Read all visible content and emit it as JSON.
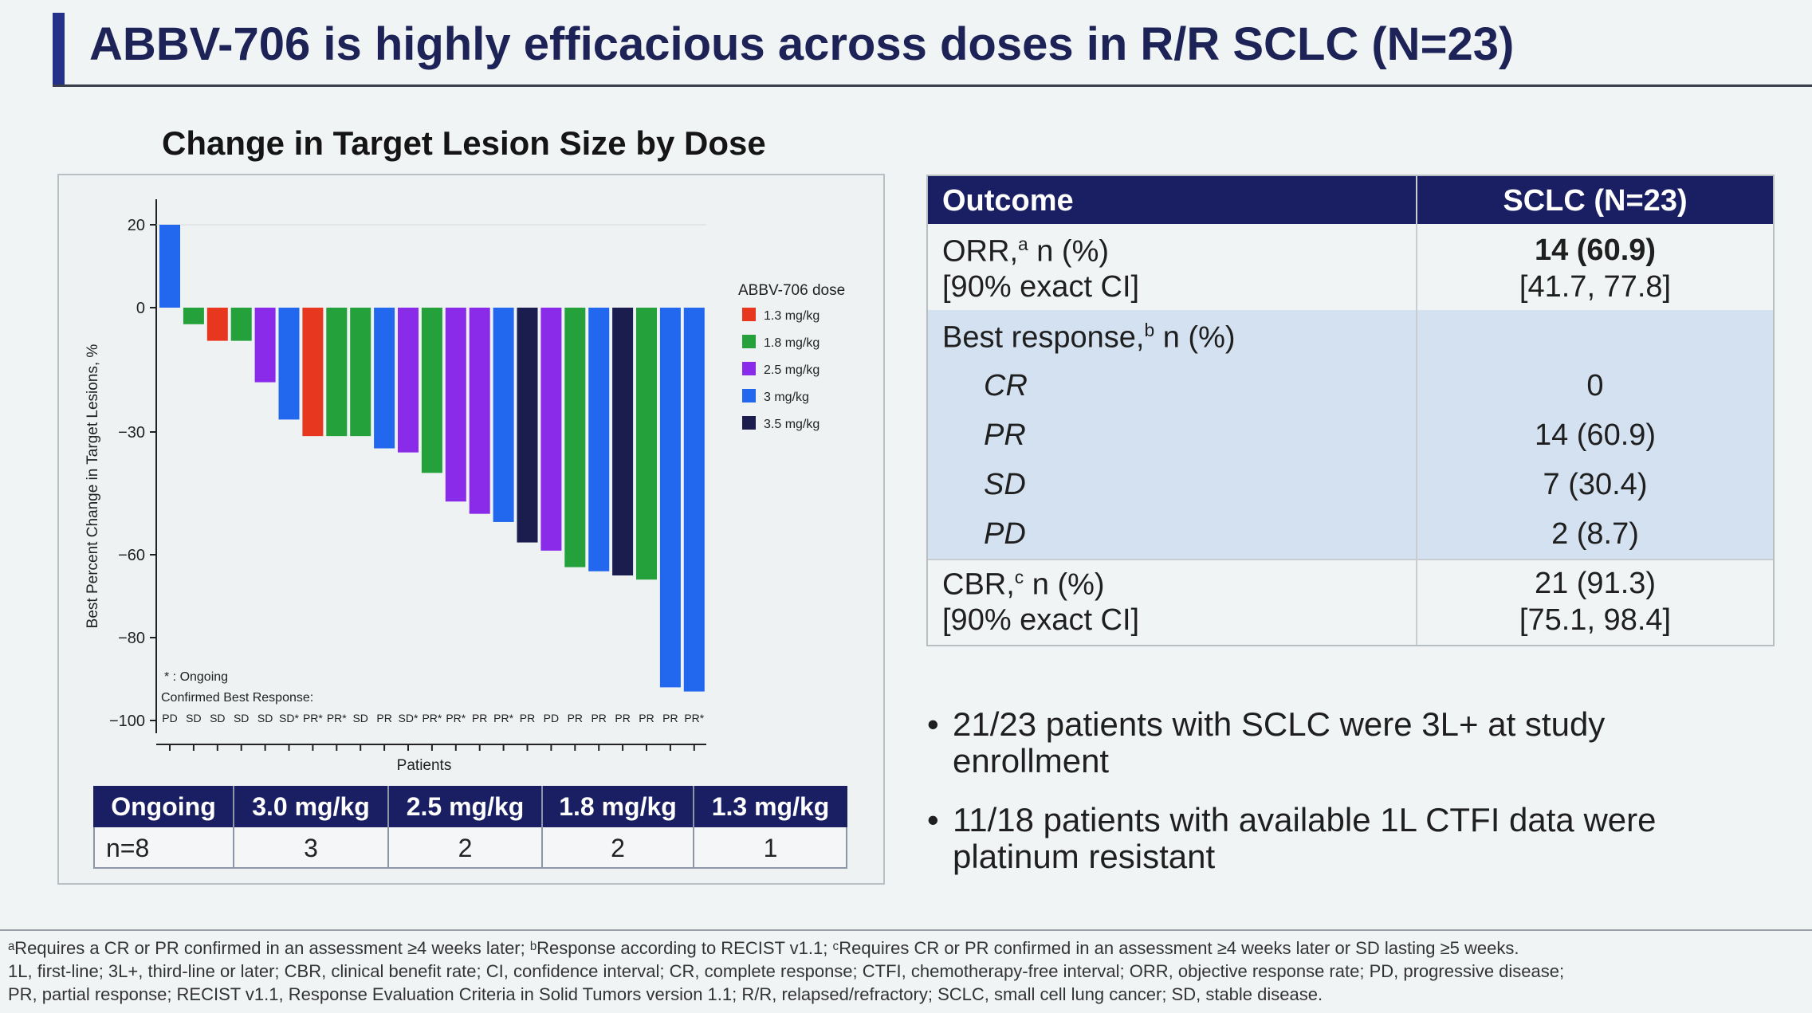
{
  "title": "ABBV-706 is highly efficacious across doses in R/R SCLC (N=23)",
  "chart_title": "Change in Target Lesion Size by Dose",
  "chart_data": {
    "type": "bar",
    "title": "Change in Target Lesion Size by Dose",
    "xlabel": "Patients",
    "ylabel": "Best Percent Change in Target Lesions, %",
    "ylim": [
      -100,
      20
    ],
    "yticks": [
      20,
      0,
      -30,
      -60,
      -80,
      -100
    ],
    "grid": false,
    "legend_title": "ABBV-706 dose",
    "legend": [
      {
        "name": "1.3 mg/kg",
        "color": "#e8371f"
      },
      {
        "name": "1.8 mg/kg",
        "color": "#24a13a"
      },
      {
        "name": "2.5 mg/kg",
        "color": "#8a2bea"
      },
      {
        "name": "3 mg/kg",
        "color": "#2168ee"
      },
      {
        "name": "3.5 mg/kg",
        "color": "#1a1d4d"
      }
    ],
    "legend_position": "right",
    "bars": [
      {
        "value": 20,
        "dose": "3 mg/kg",
        "response": "PD"
      },
      {
        "value": -4,
        "dose": "1.8 mg/kg",
        "response": "SD"
      },
      {
        "value": -8,
        "dose": "1.3 mg/kg",
        "response": "SD"
      },
      {
        "value": -8,
        "dose": "1.8 mg/kg",
        "response": "SD"
      },
      {
        "value": -18,
        "dose": "2.5 mg/kg",
        "response": "SD"
      },
      {
        "value": -27,
        "dose": "3 mg/kg",
        "response": "SD*"
      },
      {
        "value": -31,
        "dose": "1.3 mg/kg",
        "response": "PR*"
      },
      {
        "value": -31,
        "dose": "1.8 mg/kg",
        "response": "PR*"
      },
      {
        "value": -31,
        "dose": "1.8 mg/kg",
        "response": "SD"
      },
      {
        "value": -34,
        "dose": "3 mg/kg",
        "response": "PR"
      },
      {
        "value": -35,
        "dose": "2.5 mg/kg",
        "response": "SD*"
      },
      {
        "value": -40,
        "dose": "1.8 mg/kg",
        "response": "PR*"
      },
      {
        "value": -47,
        "dose": "2.5 mg/kg",
        "response": "PR*"
      },
      {
        "value": -50,
        "dose": "2.5 mg/kg",
        "response": "PR"
      },
      {
        "value": -52,
        "dose": "3 mg/kg",
        "response": "PR*"
      },
      {
        "value": -57,
        "dose": "3.5 mg/kg",
        "response": "PR"
      },
      {
        "value": -59,
        "dose": "2.5 mg/kg",
        "response": "PD"
      },
      {
        "value": -63,
        "dose": "1.8 mg/kg",
        "response": "PR"
      },
      {
        "value": -64,
        "dose": "3 mg/kg",
        "response": "PR"
      },
      {
        "value": -65,
        "dose": "3.5 mg/kg",
        "response": "PR"
      },
      {
        "value": -66,
        "dose": "1.8 mg/kg",
        "response": "PR"
      },
      {
        "value": -92,
        "dose": "3 mg/kg",
        "response": "PR"
      },
      {
        "value": -93,
        "dose": "3 mg/kg",
        "response": "PR*"
      }
    ],
    "notes": [
      "* : Ongoing",
      "Confirmed Best Response:"
    ]
  },
  "ongoing_table": {
    "headers": [
      "Ongoing",
      "3.0 mg/kg",
      "2.5 mg/kg",
      "1.8 mg/kg",
      "1.3 mg/kg"
    ],
    "values": [
      "n=8",
      "3",
      "2",
      "2",
      "1"
    ]
  },
  "outcome_table": {
    "headers": [
      "Outcome",
      "SCLC (N=23)"
    ],
    "orr_label": "ORR,",
    "orr_sup": "a",
    "orr_suffix": " n (%)",
    "orr_ci_label": "[90% exact CI]",
    "orr_value": "14 (60.9)",
    "orr_ci": "[41.7, 77.8]",
    "best_label": "Best response,",
    "best_sup": "b",
    "best_suffix": " n (%)",
    "responses": [
      {
        "label": "CR",
        "value": "0"
      },
      {
        "label": "PR",
        "value": "14 (60.9)"
      },
      {
        "label": "SD",
        "value": "7 (30.4)"
      },
      {
        "label": "PD",
        "value": "2 (8.7)"
      }
    ],
    "cbr_label": "CBR,",
    "cbr_sup": "c",
    "cbr_suffix": " n (%)",
    "cbr_ci_label": "[90% exact CI]",
    "cbr_value": "21 (91.3)",
    "cbr_ci": "[75.1, 98.4]"
  },
  "bullets": [
    "21/23 patients with SCLC were 3L+ at study enrollment",
    "11/18 patients with available 1L CTFI data were platinum resistant"
  ],
  "footnotes": [
    "ᵃRequires a CR or PR confirmed in an assessment ≥4 weeks later; ᵇResponse according to RECIST v1.1; ᶜRequires CR or PR confirmed in an assessment ≥4 weeks later or SD lasting ≥5 weeks.",
    "1L, first-line; 3L+, third-line or later; CBR, clinical benefit rate; CI, confidence interval; CR, complete response; CTFI, chemotherapy-free interval; ORR, objective response rate; PD, progressive disease;",
    "PR, partial response; RECIST v1.1, Response Evaluation Criteria in Solid Tumors version 1.1; R/R, relapsed/refractory; SCLC, small cell lung cancer; SD, stable disease."
  ]
}
